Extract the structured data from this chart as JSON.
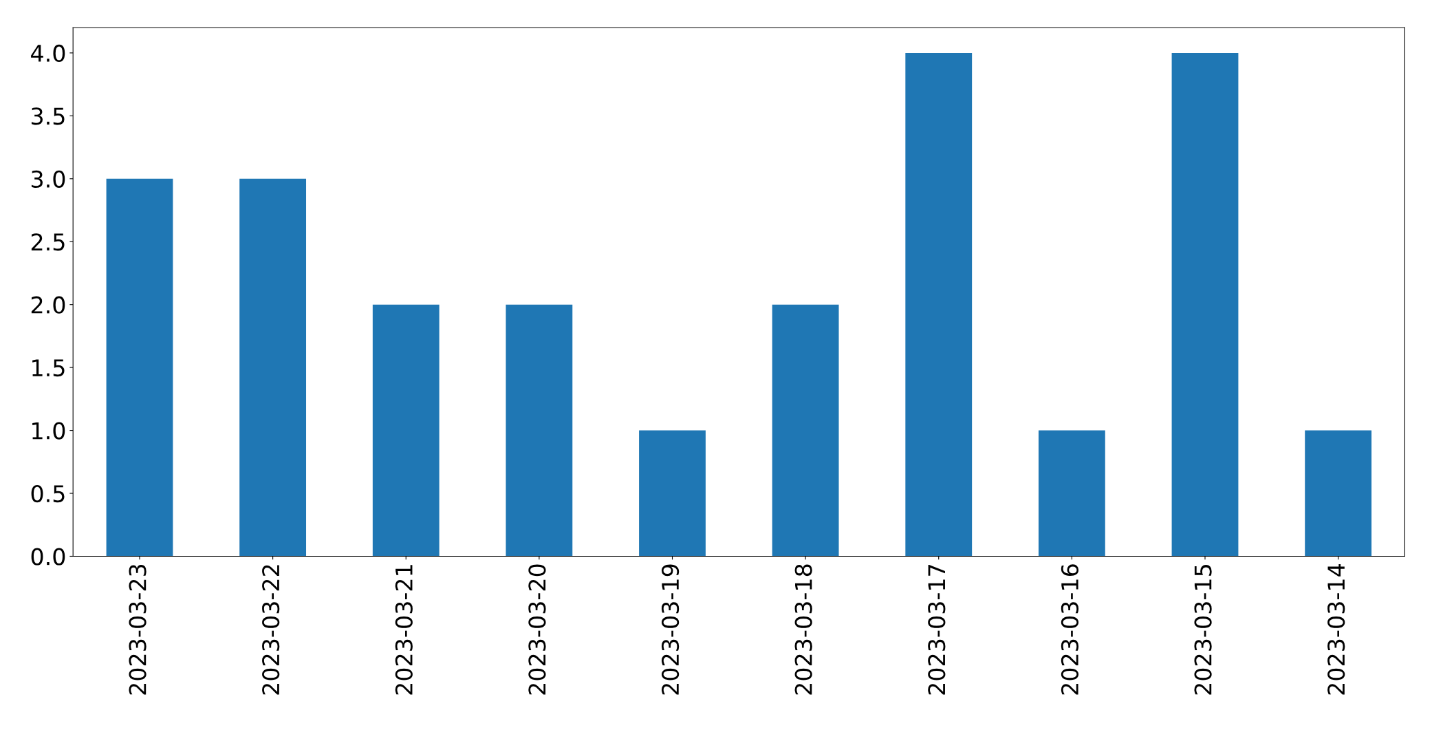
{
  "chart_data": {
    "type": "bar",
    "categories": [
      "2023-03-23",
      "2023-03-22",
      "2023-03-21",
      "2023-03-20",
      "2023-03-19",
      "2023-03-18",
      "2023-03-17",
      "2023-03-16",
      "2023-03-15",
      "2023-03-14"
    ],
    "values": [
      3,
      3,
      2,
      2,
      1,
      2,
      4,
      1,
      4,
      1
    ],
    "color": "#1f77b4",
    "ylim": [
      0,
      4.2
    ],
    "yticks": [
      {
        "value": 0,
        "label": "0.0"
      },
      {
        "value": 0.5,
        "label": "0.5"
      },
      {
        "value": 1,
        "label": "1.0"
      },
      {
        "value": 1.5,
        "label": "1.5"
      },
      {
        "value": 2,
        "label": "2.0"
      },
      {
        "value": 2.5,
        "label": "2.5"
      },
      {
        "value": 3,
        "label": "3.0"
      },
      {
        "value": 3.5,
        "label": "3.5"
      },
      {
        "value": 4,
        "label": "4.0"
      }
    ],
    "grid": false
  }
}
